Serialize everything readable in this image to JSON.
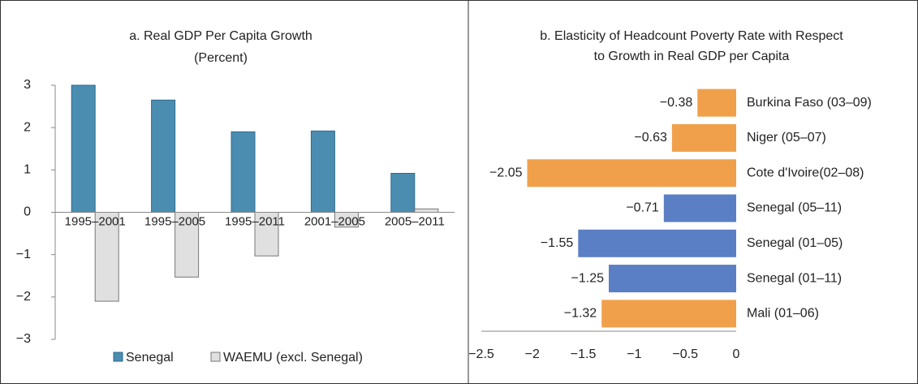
{
  "chart_data": [
    {
      "type": "grouped-bar",
      "title": "a. Real GDP Per Capita Growth",
      "subtitle": "(Percent)",
      "categories": [
        "1995–2001",
        "1995–2005",
        "1995–2011",
        "2001–2005",
        "2005–2011"
      ],
      "series": [
        {
          "name": "Senegal",
          "color": "#4a8db1",
          "values": [
            3.0,
            2.65,
            1.9,
            1.92,
            0.92
          ]
        },
        {
          "name": "WAEMU (excl. Senegal)",
          "color": "#e0e0e0",
          "values": [
            -2.1,
            -1.53,
            -1.03,
            -0.35,
            0.08
          ]
        }
      ],
      "ylim": [
        -3,
        3
      ],
      "yticks": [
        {
          "value": -3,
          "label": "−3"
        },
        {
          "value": -2,
          "label": "−2"
        },
        {
          "value": -1,
          "label": "−1"
        },
        0,
        1,
        2,
        3
      ],
      "legend": "bottom"
    },
    {
      "type": "horizontal-bar",
      "title": "b. Elasticity of Headcount Poverty Rate with Respect",
      "subtitle": "to Growth in Real GDP per Capita",
      "categories": [
        "Burkina Faso (03–09)",
        "Niger (05–07)",
        "Cote d'Ivoire(02–08)",
        "Senegal (05–11)",
        "Senegal (01–05)",
        "Senegal (01–11)",
        "Mali (01–06)"
      ],
      "values": [
        -0.38,
        -0.63,
        -2.05,
        -0.71,
        -1.55,
        -1.25,
        -1.32
      ],
      "value_labels": [
        "−0.38",
        "−0.63",
        "−2.05",
        "−0.71",
        "−1.55",
        "−1.25",
        "−1.32"
      ],
      "colors": [
        "#f0a04b",
        "#f0a04b",
        "#f0a04b",
        "#5b7fc4",
        "#5b7fc4",
        "#5b7fc4",
        "#f0a04b"
      ],
      "xlim": [
        -2.5,
        0
      ],
      "xticks": [
        {
          "value": -2.5,
          "label": "−2.5"
        },
        {
          "value": -2,
          "label": "−2"
        },
        {
          "value": -1.5,
          "label": "−1.5"
        },
        {
          "value": -1,
          "label": "−1"
        },
        {
          "value": -0.5,
          "label": "−0.5"
        },
        0
      ]
    }
  ]
}
